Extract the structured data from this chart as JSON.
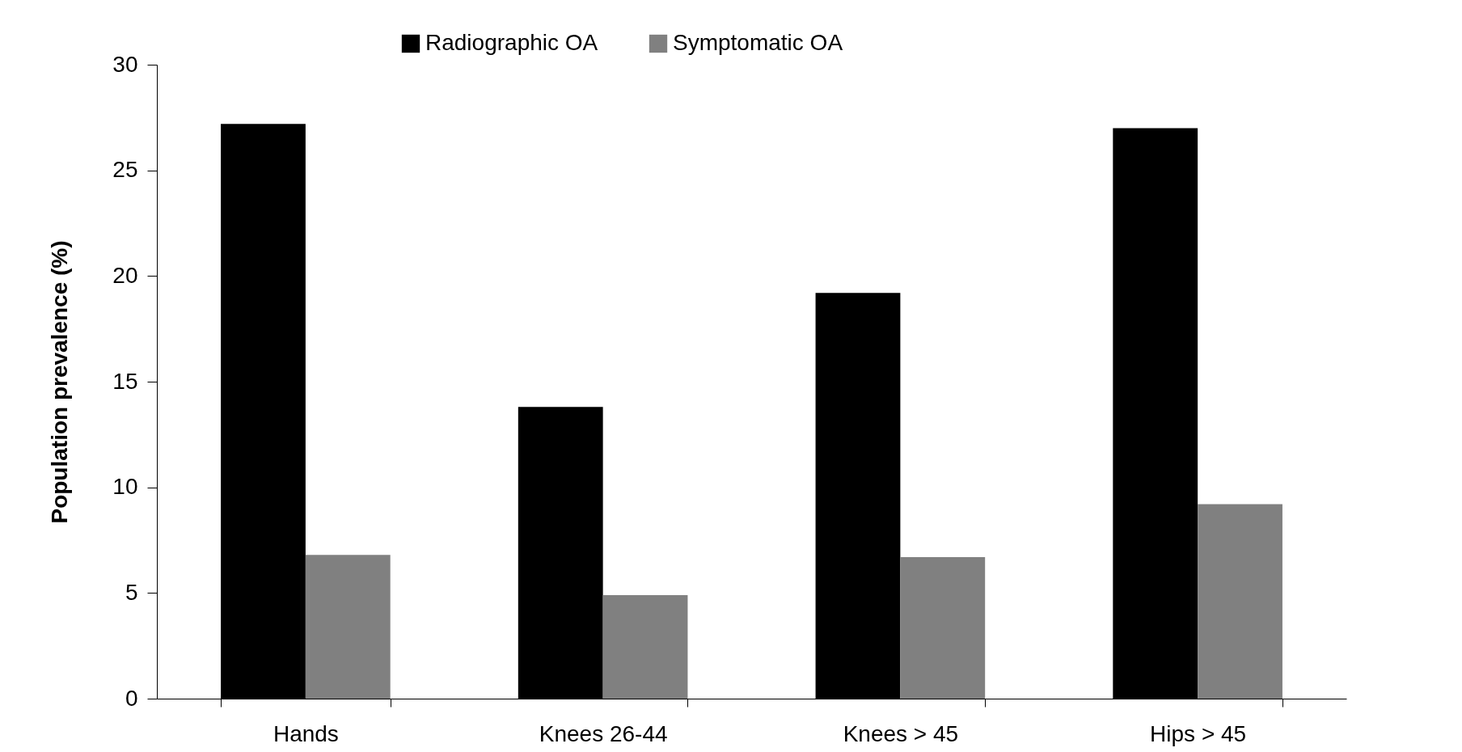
{
  "chart_data": {
    "type": "bar",
    "ylabel": "Population prevalence (%)",
    "categories": [
      "Hands",
      "Knees 26-44",
      "Knees > 45",
      "Hips > 45"
    ],
    "series": [
      {
        "name": "Radiographic OA",
        "color": "#000000",
        "values": [
          27.2,
          13.8,
          19.2,
          27.0
        ]
      },
      {
        "name": "Symptomatic OA",
        "color": "#808080",
        "values": [
          6.8,
          4.9,
          6.7,
          9.2
        ]
      }
    ],
    "ylim": [
      0,
      30
    ],
    "yticks": [
      0,
      5,
      10,
      15,
      20,
      25,
      30
    ],
    "grid": false,
    "legend": "top"
  }
}
